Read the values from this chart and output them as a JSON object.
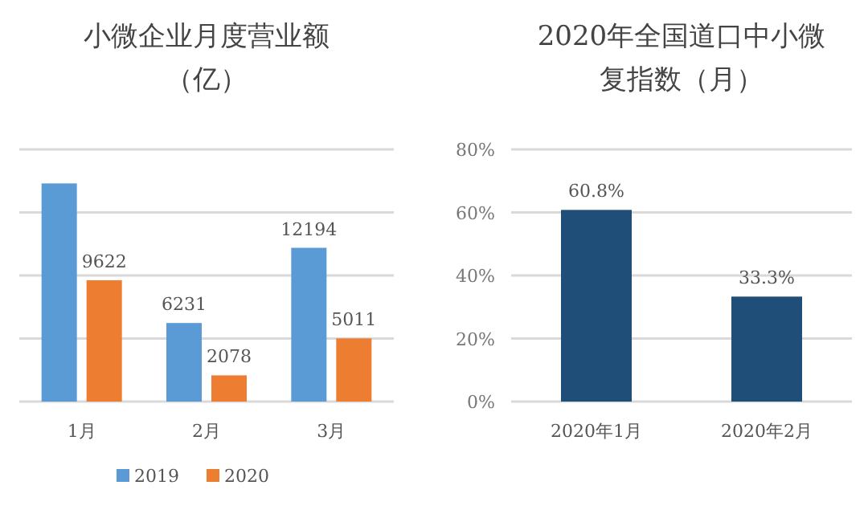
{
  "chart_data": [
    {
      "type": "bar",
      "title": "小微企业月度营业额",
      "subtitle": "（亿）",
      "categories": [
        "1月",
        "2月",
        "3月"
      ],
      "series": [
        {
          "name": "2019",
          "color": "#5b9bd5",
          "values": [
            17300,
            6231,
            12194
          ],
          "value_labels": [
            null,
            "6231",
            "12194"
          ]
        },
        {
          "name": "2020",
          "color": "#ed7d31",
          "values": [
            9622,
            2078,
            5011
          ],
          "value_labels": [
            "9622",
            "2078",
            "5011"
          ]
        }
      ],
      "ylim": [
        0,
        20000
      ],
      "yticks": [
        {
          "value": 0,
          "label": null
        },
        {
          "value": 5000,
          "label": null
        },
        {
          "value": 10000,
          "label": null
        },
        {
          "value": 15000,
          "label": null
        },
        {
          "value": 20000,
          "label": null
        }
      ],
      "grid": "y",
      "legend": "bottom",
      "tick_labels": "x"
    },
    {
      "type": "bar",
      "title": "2020年全国道口中小微",
      "subtitle": "复指数（月）",
      "categories": [
        "2020年1月",
        "2020年2月"
      ],
      "values": [
        60.8,
        33.3
      ],
      "color": "#1f4e79",
      "value_labels": [
        "60.8%",
        "33.3%"
      ],
      "ylim": [
        0,
        80
      ],
      "yticks": [
        {
          "value": 0,
          "label": "0%"
        },
        {
          "value": 20,
          "label": "20%"
        },
        {
          "value": 40,
          "label": "40%"
        },
        {
          "value": 60,
          "label": "60%"
        },
        {
          "value": 80,
          "label": "80%"
        }
      ],
      "grid": "y"
    }
  ]
}
